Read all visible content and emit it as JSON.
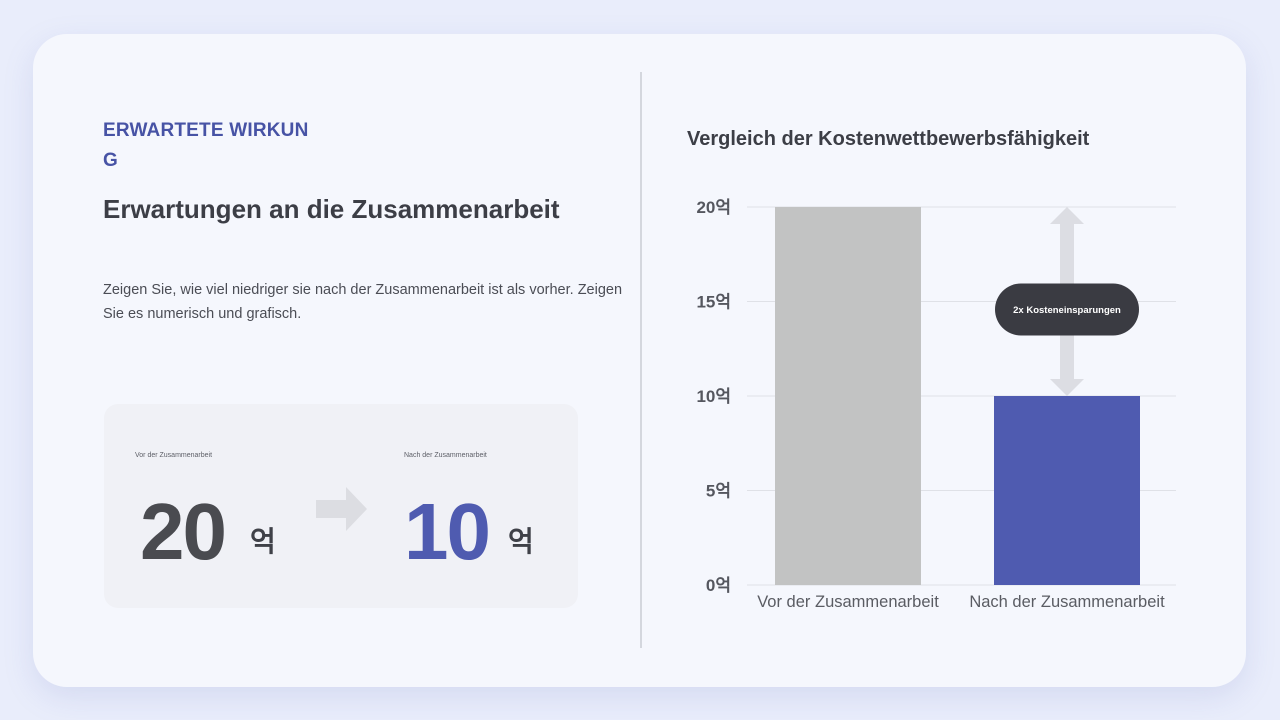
{
  "left": {
    "eyebrow": "ERWARTETE WIRKUNG",
    "headline": "Erwartungen an die Zusammenarbeit",
    "description": "Zeigen Sie, wie viel niedriger sie nach der Zusammenarbeit ist als vorher. Zeigen Sie es numerisch und grafisch.",
    "before": {
      "caption": "Vor der Zusammenarbeit",
      "value": "20",
      "unit": "억"
    },
    "after": {
      "caption": "Nach der Zusammenarbeit",
      "value": "10",
      "unit": "억"
    }
  },
  "colors": {
    "accent": "#4f5bb0",
    "before_bar": "#c2c3c3",
    "text_dark": "#3c3e46",
    "callout_bg": "#3a3b42"
  },
  "chart_data": {
    "type": "bar",
    "title": "Vergleich der Kostenwettbewerbsfähigkeit",
    "categories": [
      "Vor der Zusammenarbeit",
      "Nach der Zusammenarbeit"
    ],
    "values": [
      20,
      10
    ],
    "ylim": [
      0,
      20
    ],
    "yticks": [
      0,
      5,
      10,
      15,
      20
    ],
    "ytick_labels": [
      "0억",
      "5억",
      "10억",
      "15억",
      "20억"
    ],
    "grid": true,
    "annotation": "2x Kosteneinsparungen"
  }
}
